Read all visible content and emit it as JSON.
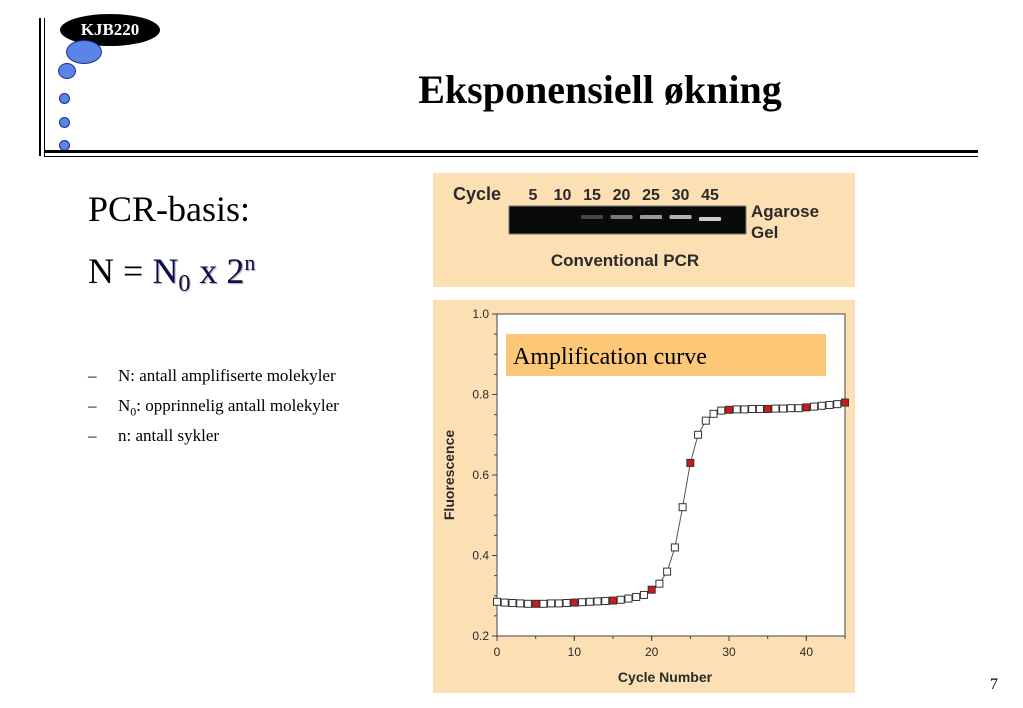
{
  "header": {
    "course_code": "KJB220",
    "title": "Eksponensiell økning"
  },
  "main": {
    "subheading": "PCR-basis:",
    "formula": {
      "lhs": "N = ",
      "n0_base": "N",
      "n0_sub": "0",
      "times": " x 2",
      "exp": "n"
    },
    "bullets": [
      {
        "dash": "–",
        "text": "N: antall amplifiserte molekyler"
      },
      {
        "dash": "–",
        "base": "N",
        "sub": "0",
        "text": ": opprinnelig antall molekyler"
      },
      {
        "dash": "–",
        "text": "n: antall sykler"
      }
    ]
  },
  "gel_figure": {
    "cycle_label": "Cycle",
    "cycles": [
      "5",
      "10",
      "15",
      "20",
      "25",
      "30",
      "45"
    ],
    "band_intensity": [
      0.0,
      0.0,
      0.05,
      0.35,
      0.55,
      0.7,
      0.85
    ],
    "side_label_line1": "Agarose",
    "side_label_line2": "Gel",
    "caption": "Conventional PCR"
  },
  "chart_data": {
    "type": "scatter",
    "title": "Amplification curve",
    "xlabel": "Cycle Number",
    "ylabel": "Fluorescence",
    "xlim": [
      0,
      45
    ],
    "ylim": [
      0.2,
      1.0
    ],
    "xticks": [
      "0",
      "10",
      "20",
      "30",
      "40"
    ],
    "yticks": [
      "0.2",
      "0.4",
      "0.6",
      "0.8",
      "1.0"
    ],
    "marker_colors": {
      "hollow": "#ffffff",
      "highlighted": "#cc1a1a"
    },
    "series": [
      {
        "x": [
          0,
          1,
          2,
          3,
          4,
          5,
          6,
          7,
          8,
          9,
          10,
          11,
          12,
          13,
          14,
          15,
          16,
          17,
          18,
          19,
          20,
          21,
          22,
          23,
          24,
          25,
          26,
          27,
          28,
          29,
          30,
          31,
          32,
          33,
          34,
          35,
          36,
          37,
          38,
          39,
          40,
          41,
          42,
          43,
          44,
          45
        ],
        "y": [
          0.285,
          0.283,
          0.282,
          0.281,
          0.28,
          0.28,
          0.28,
          0.281,
          0.281,
          0.282,
          0.283,
          0.284,
          0.285,
          0.286,
          0.287,
          0.288,
          0.29,
          0.293,
          0.297,
          0.302,
          0.315,
          0.33,
          0.36,
          0.42,
          0.52,
          0.63,
          0.7,
          0.735,
          0.752,
          0.76,
          0.762,
          0.763,
          0.763,
          0.764,
          0.764,
          0.764,
          0.765,
          0.765,
          0.766,
          0.766,
          0.768,
          0.77,
          0.772,
          0.774,
          0.776,
          0.78
        ],
        "highlighted_x": [
          5,
          10,
          15,
          20,
          25,
          30,
          35,
          40,
          45
        ]
      }
    ]
  },
  "footer": {
    "page_number": "7"
  }
}
